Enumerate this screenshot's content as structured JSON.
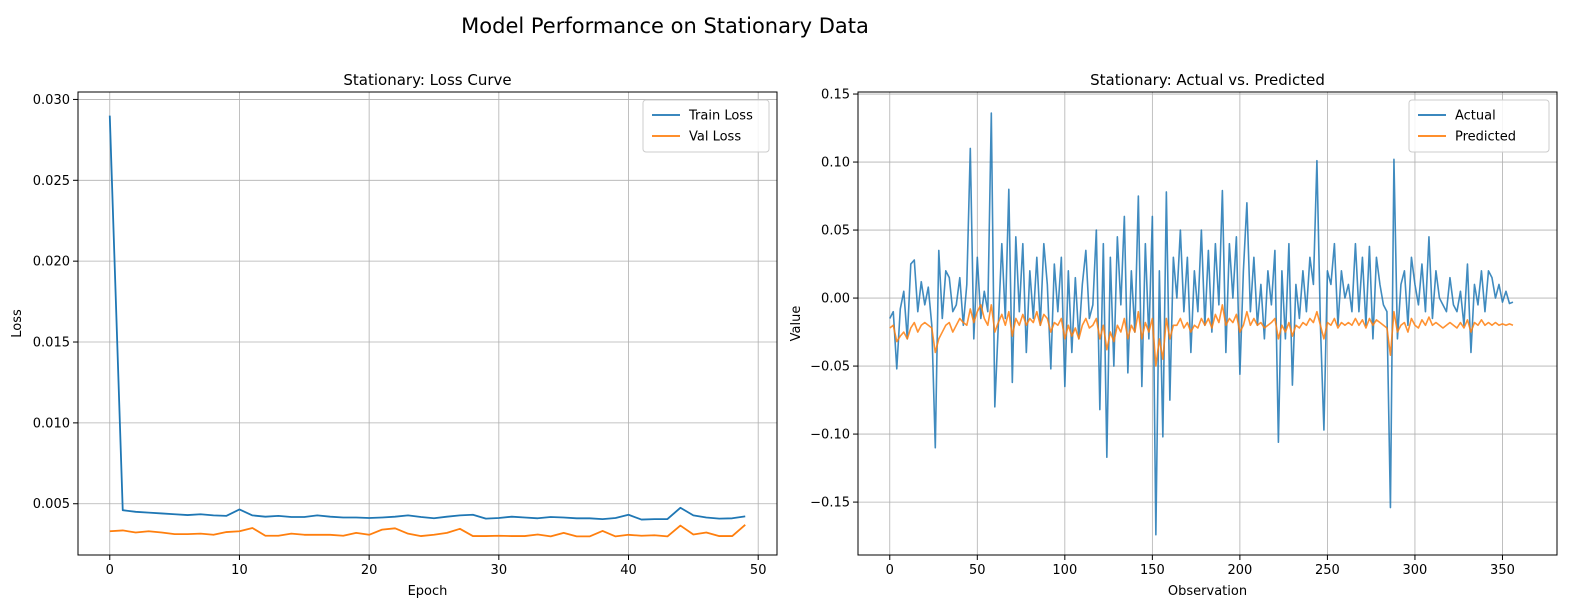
{
  "figure": {
    "suptitle": "Model Performance on Stationary Data"
  },
  "chart_data": [
    {
      "type": "line",
      "title": "Stationary: Loss Curve",
      "xlabel": "Epoch",
      "ylabel": "Loss",
      "xlim": [
        -2.45,
        51.45
      ],
      "ylim": [
        0.00183,
        0.03046
      ],
      "xticks": [
        0,
        10,
        20,
        30,
        40,
        50
      ],
      "xtick_labels": [
        "0",
        "10",
        "20",
        "30",
        "40",
        "50"
      ],
      "yticks": [
        0.005,
        0.01,
        0.015,
        0.02,
        0.025,
        0.03
      ],
      "ytick_labels": [
        "0.005",
        "0.010",
        "0.015",
        "0.020",
        "0.025",
        "0.030"
      ],
      "grid": true,
      "legend": "top-right",
      "x": [
        0,
        1,
        2,
        3,
        4,
        5,
        6,
        7,
        8,
        9,
        10,
        11,
        12,
        13,
        14,
        15,
        16,
        17,
        18,
        19,
        20,
        21,
        22,
        23,
        24,
        25,
        26,
        27,
        28,
        29,
        30,
        31,
        32,
        33,
        34,
        35,
        36,
        37,
        38,
        39,
        40,
        41,
        42,
        43,
        44,
        45,
        46,
        47,
        48,
        49
      ],
      "series": [
        {
          "name": "Train Loss",
          "color": "#1f77b4",
          "values": [
            0.029,
            0.0046,
            0.0045,
            0.00445,
            0.0044,
            0.00435,
            0.0043,
            0.00435,
            0.00428,
            0.00425,
            0.00465,
            0.00428,
            0.0042,
            0.00425,
            0.00418,
            0.00418,
            0.00428,
            0.0042,
            0.00415,
            0.00415,
            0.00412,
            0.00415,
            0.0042,
            0.00428,
            0.00418,
            0.0041,
            0.0042,
            0.00428,
            0.00432,
            0.00408,
            0.00412,
            0.0042,
            0.00415,
            0.0041,
            0.00418,
            0.00415,
            0.0041,
            0.0041,
            0.00405,
            0.00412,
            0.00432,
            0.00402,
            0.00405,
            0.00405,
            0.00475,
            0.00428,
            0.00415,
            0.00408,
            0.0041,
            0.00422
          ]
        },
        {
          "name": "Val Loss",
          "color": "#ff7f0e",
          "values": [
            0.0033,
            0.00335,
            0.00322,
            0.0033,
            0.00322,
            0.00312,
            0.00312,
            0.00315,
            0.00308,
            0.00325,
            0.0033,
            0.0035,
            0.00302,
            0.00302,
            0.00315,
            0.00308,
            0.00308,
            0.00308,
            0.00302,
            0.0032,
            0.00308,
            0.0034,
            0.00348,
            0.00315,
            0.003,
            0.00308,
            0.0032,
            0.00345,
            0.003,
            0.003,
            0.00302,
            0.003,
            0.003,
            0.0031,
            0.00298,
            0.0032,
            0.00298,
            0.00298,
            0.00332,
            0.00298,
            0.00308,
            0.00302,
            0.00305,
            0.00298,
            0.00365,
            0.0031,
            0.00322,
            0.003,
            0.003,
            0.0037
          ]
        }
      ]
    },
    {
      "type": "line",
      "title": "Stationary: Actual vs. Predicted",
      "xlabel": "Observation",
      "ylabel": "Value",
      "xlim": [
        -18.15,
        381.15
      ],
      "ylim": [
        -0.1889,
        0.1515
      ],
      "xticks": [
        0,
        50,
        100,
        150,
        200,
        250,
        300,
        350
      ],
      "xtick_labels": [
        "0",
        "50",
        "100",
        "150",
        "200",
        "250",
        "300",
        "350"
      ],
      "yticks": [
        -0.15,
        -0.1,
        -0.05,
        0.0,
        0.05,
        0.1,
        0.15
      ],
      "ytick_labels": [
        "−0.15",
        "−0.10",
        "−0.05",
        "0.00",
        "0.05",
        "0.10",
        "0.15"
      ],
      "grid": true,
      "legend": "top-right",
      "x_start": 0,
      "x_step": 2,
      "series": [
        {
          "name": "Actual",
          "color": "#1f77b4",
          "values": [
            -0.015,
            -0.01,
            -0.052,
            -0.008,
            0.005,
            -0.03,
            0.025,
            0.028,
            -0.01,
            0.012,
            -0.005,
            0.008,
            -0.02,
            -0.11,
            0.035,
            -0.015,
            0.02,
            0.015,
            -0.01,
            -0.005,
            0.015,
            -0.02,
            0.01,
            0.11,
            -0.03,
            0.03,
            -0.015,
            0.005,
            -0.01,
            0.136,
            -0.08,
            -0.02,
            0.04,
            -0.015,
            0.08,
            -0.062,
            0.045,
            -0.01,
            0.04,
            -0.04,
            0.02,
            -0.015,
            0.03,
            -0.02,
            0.04,
            0.01,
            -0.052,
            0.025,
            -0.01,
            0.03,
            -0.065,
            0.02,
            -0.04,
            0.015,
            -0.03,
            0.01,
            0.035,
            -0.015,
            -0.005,
            0.05,
            -0.082,
            0.04,
            -0.117,
            0.03,
            -0.05,
            0.045,
            -0.005,
            0.06,
            -0.055,
            0.02,
            -0.025,
            0.075,
            -0.065,
            0.04,
            -0.03,
            0.06,
            -0.174,
            0.02,
            -0.102,
            0.078,
            -0.075,
            0.03,
            0.0,
            0.05,
            -0.01,
            0.03,
            -0.04,
            0.02,
            -0.01,
            0.05,
            -0.02,
            0.035,
            -0.025,
            0.04,
            -0.005,
            0.079,
            -0.04,
            0.04,
            0.0,
            0.045,
            -0.056,
            0.02,
            0.07,
            -0.01,
            0.03,
            -0.02,
            0.01,
            -0.03,
            0.02,
            -0.005,
            0.035,
            -0.106,
            0.02,
            -0.03,
            0.04,
            -0.064,
            0.01,
            -0.015,
            0.02,
            -0.01,
            0.03,
            0.01,
            0.101,
            -0.02,
            -0.097,
            0.02,
            0.01,
            0.04,
            -0.02,
            0.02,
            0.0,
            0.01,
            -0.01,
            0.04,
            -0.01,
            0.03,
            -0.02,
            0.038,
            -0.03,
            0.03,
            0.01,
            -0.005,
            -0.01,
            -0.154,
            0.102,
            -0.03,
            0.01,
            0.02,
            -0.02,
            0.03,
            0.01,
            -0.005,
            0.025,
            -0.01,
            0.045,
            -0.015,
            0.02,
            0.0,
            -0.005,
            -0.01,
            0.015,
            -0.005,
            -0.01,
            0.005,
            -0.02,
            0.025,
            -0.04,
            0.01,
            -0.005,
            0.02,
            -0.01,
            0.02,
            0.015,
            0.0,
            0.01,
            -0.003,
            0.005,
            -0.004,
            -0.003
          ]
        },
        {
          "name": "Predicted",
          "color": "#ff7f0e",
          "values": [
            -0.022,
            -0.02,
            -0.032,
            -0.028,
            -0.025,
            -0.03,
            -0.022,
            -0.018,
            -0.025,
            -0.02,
            -0.018,
            -0.02,
            -0.022,
            -0.04,
            -0.03,
            -0.025,
            -0.02,
            -0.018,
            -0.025,
            -0.02,
            -0.015,
            -0.018,
            -0.02,
            -0.008,
            -0.018,
            -0.01,
            -0.005,
            -0.015,
            -0.02,
            -0.005,
            -0.025,
            -0.018,
            -0.012,
            -0.02,
            -0.01,
            -0.028,
            -0.015,
            -0.02,
            -0.012,
            -0.02,
            -0.015,
            -0.018,
            -0.01,
            -0.02,
            -0.012,
            -0.015,
            -0.025,
            -0.018,
            -0.02,
            -0.015,
            -0.03,
            -0.02,
            -0.028,
            -0.022,
            -0.03,
            -0.02,
            -0.015,
            -0.022,
            -0.02,
            -0.015,
            -0.03,
            -0.02,
            -0.038,
            -0.025,
            -0.032,
            -0.02,
            -0.025,
            -0.015,
            -0.03,
            -0.02,
            -0.025,
            -0.01,
            -0.03,
            -0.018,
            -0.025,
            -0.015,
            -0.05,
            -0.03,
            -0.045,
            -0.015,
            -0.03,
            -0.02,
            -0.02,
            -0.015,
            -0.022,
            -0.018,
            -0.025,
            -0.02,
            -0.022,
            -0.015,
            -0.02,
            -0.015,
            -0.022,
            -0.012,
            -0.018,
            -0.005,
            -0.02,
            -0.015,
            -0.018,
            -0.012,
            -0.025,
            -0.02,
            -0.01,
            -0.02,
            -0.015,
            -0.02,
            -0.018,
            -0.022,
            -0.02,
            -0.018,
            -0.015,
            -0.03,
            -0.02,
            -0.025,
            -0.018,
            -0.028,
            -0.02,
            -0.022,
            -0.018,
            -0.02,
            -0.015,
            -0.018,
            -0.01,
            -0.02,
            -0.03,
            -0.018,
            -0.02,
            -0.015,
            -0.022,
            -0.018,
            -0.02,
            -0.018,
            -0.02,
            -0.015,
            -0.02,
            -0.016,
            -0.022,
            -0.015,
            -0.02,
            -0.016,
            -0.018,
            -0.02,
            -0.022,
            -0.042,
            -0.01,
            -0.025,
            -0.02,
            -0.018,
            -0.025,
            -0.015,
            -0.02,
            -0.022,
            -0.016,
            -0.02,
            -0.014,
            -0.02,
            -0.018,
            -0.02,
            -0.022,
            -0.02,
            -0.018,
            -0.02,
            -0.022,
            -0.018,
            -0.022,
            -0.016,
            -0.025,
            -0.018,
            -0.02,
            -0.016,
            -0.02,
            -0.018,
            -0.02,
            -0.018,
            -0.02,
            -0.019,
            -0.02,
            -0.019,
            -0.02
          ]
        }
      ]
    }
  ]
}
